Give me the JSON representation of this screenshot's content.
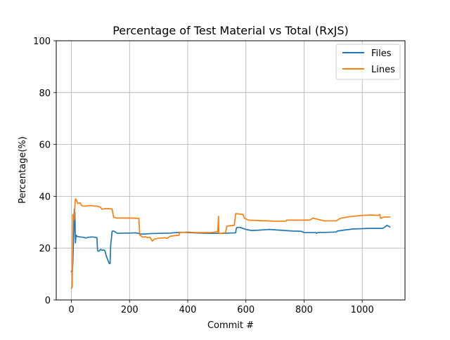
{
  "chart_data": {
    "type": "line",
    "title": "Percentage of Test Material vs Total (RxJS)",
    "xlabel": "Commit #",
    "ylabel": "Percentage(%)",
    "xlim": [
      -52,
      1147
    ],
    "ylim": [
      0,
      100
    ],
    "x_ticks": [
      0,
      200,
      400,
      600,
      800,
      1000
    ],
    "y_ticks": [
      0,
      20,
      40,
      60,
      80,
      100
    ],
    "grid": true,
    "legend_position": "top-right",
    "series": [
      {
        "name": "Files",
        "color": "#1f77b4",
        "points": [
          [
            0,
            11
          ],
          [
            3,
            11
          ],
          [
            5,
            14
          ],
          [
            7,
            22
          ],
          [
            9,
            28
          ],
          [
            10,
            35
          ],
          [
            11,
            30
          ],
          [
            12,
            34
          ],
          [
            14,
            22
          ],
          [
            16,
            25
          ],
          [
            20,
            24.5
          ],
          [
            30,
            24.3
          ],
          [
            40,
            24.2
          ],
          [
            50,
            23.9
          ],
          [
            55,
            24.1
          ],
          [
            60,
            24.2
          ],
          [
            70,
            24.3
          ],
          [
            80,
            24.2
          ],
          [
            88,
            24
          ],
          [
            90,
            19
          ],
          [
            95,
            18.8
          ],
          [
            100,
            19.5
          ],
          [
            105,
            19.2
          ],
          [
            110,
            19.3
          ],
          [
            115,
            19.1
          ],
          [
            120,
            17
          ],
          [
            125,
            15.5
          ],
          [
            130,
            14.1
          ],
          [
            133,
            14
          ],
          [
            135,
            21
          ],
          [
            138,
            24
          ],
          [
            140,
            26.5
          ],
          [
            145,
            26.6
          ],
          [
            150,
            26.3
          ],
          [
            155,
            25.9
          ],
          [
            160,
            25.7
          ],
          [
            180,
            25.8
          ],
          [
            200,
            25.8
          ],
          [
            220,
            25.9
          ],
          [
            230,
            25.7
          ],
          [
            240,
            25.4
          ],
          [
            250,
            25.4
          ],
          [
            270,
            25.6
          ],
          [
            300,
            25.7
          ],
          [
            340,
            25.8
          ],
          [
            360,
            26
          ],
          [
            380,
            26.1
          ],
          [
            400,
            26
          ],
          [
            440,
            25.8
          ],
          [
            480,
            25.7
          ],
          [
            520,
            25.7
          ],
          [
            540,
            25.8
          ],
          [
            565,
            25.9
          ],
          [
            567,
            27.6
          ],
          [
            570,
            28
          ],
          [
            580,
            28
          ],
          [
            590,
            27.6
          ],
          [
            600,
            27.2
          ],
          [
            620,
            26.8
          ],
          [
            640,
            26.9
          ],
          [
            680,
            27.2
          ],
          [
            720,
            26.9
          ],
          [
            760,
            26.6
          ],
          [
            790,
            26.5
          ],
          [
            800,
            26
          ],
          [
            840,
            26
          ],
          [
            843,
            25.7
          ],
          [
            846,
            26
          ],
          [
            880,
            26.1
          ],
          [
            910,
            26.2
          ],
          [
            915,
            26.6
          ],
          [
            940,
            27
          ],
          [
            970,
            27.4
          ],
          [
            1000,
            27.5
          ],
          [
            1020,
            27.6
          ],
          [
            1050,
            27.6
          ],
          [
            1070,
            27.6
          ],
          [
            1080,
            28.3
          ],
          [
            1085,
            28.8
          ],
          [
            1090,
            28.5
          ],
          [
            1095,
            28.2
          ]
        ]
      },
      {
        "name": "Lines",
        "color": "#ff7f0e",
        "points": [
          [
            0,
            4.5
          ],
          [
            3,
            5
          ],
          [
            5,
            33
          ],
          [
            7,
            31
          ],
          [
            9,
            32.5
          ],
          [
            10,
            31
          ],
          [
            12,
            36
          ],
          [
            14,
            39
          ],
          [
            18,
            38.5
          ],
          [
            22,
            37.2
          ],
          [
            30,
            37.5
          ],
          [
            35,
            36.5
          ],
          [
            40,
            36.2
          ],
          [
            50,
            36.2
          ],
          [
            60,
            36.4
          ],
          [
            70,
            36.4
          ],
          [
            80,
            36.2
          ],
          [
            90,
            36.2
          ],
          [
            100,
            35.8
          ],
          [
            105,
            35
          ],
          [
            115,
            35.2
          ],
          [
            130,
            35.2
          ],
          [
            140,
            35.1
          ],
          [
            145,
            32
          ],
          [
            155,
            31.6
          ],
          [
            180,
            31.6
          ],
          [
            200,
            31.6
          ],
          [
            225,
            31.5
          ],
          [
            232,
            31.5
          ],
          [
            235,
            25
          ],
          [
            240,
            24.7
          ],
          [
            245,
            24.2
          ],
          [
            255,
            24.4
          ],
          [
            262,
            24
          ],
          [
            270,
            24.2
          ],
          [
            278,
            22.7
          ],
          [
            285,
            23.5
          ],
          [
            300,
            23.8
          ],
          [
            320,
            24
          ],
          [
            330,
            23.8
          ],
          [
            340,
            24.6
          ],
          [
            370,
            25
          ],
          [
            372,
            26
          ],
          [
            400,
            26.2
          ],
          [
            430,
            26
          ],
          [
            460,
            26
          ],
          [
            480,
            26
          ],
          [
            500,
            26.3
          ],
          [
            503,
            26.3
          ],
          [
            506,
            32.3
          ],
          [
            507,
            26
          ],
          [
            510,
            25.6
          ],
          [
            520,
            25.8
          ],
          [
            530,
            26
          ],
          [
            535,
            28.5
          ],
          [
            560,
            28.8
          ],
          [
            565,
            33.3
          ],
          [
            590,
            33
          ],
          [
            595,
            31.5
          ],
          [
            610,
            30.8
          ],
          [
            650,
            30.6
          ],
          [
            700,
            30.4
          ],
          [
            738,
            30.4
          ],
          [
            740,
            30.8
          ],
          [
            790,
            30.8
          ],
          [
            820,
            30.8
          ],
          [
            830,
            31.6
          ],
          [
            850,
            31
          ],
          [
            870,
            30.5
          ],
          [
            910,
            30.5
          ],
          [
            925,
            31.5
          ],
          [
            960,
            32.2
          ],
          [
            1000,
            32.6
          ],
          [
            1030,
            32.8
          ],
          [
            1055,
            32.6
          ],
          [
            1060,
            33
          ],
          [
            1063,
            31.5
          ],
          [
            1075,
            32
          ],
          [
            1085,
            32
          ],
          [
            1095,
            32
          ]
        ]
      }
    ]
  }
}
